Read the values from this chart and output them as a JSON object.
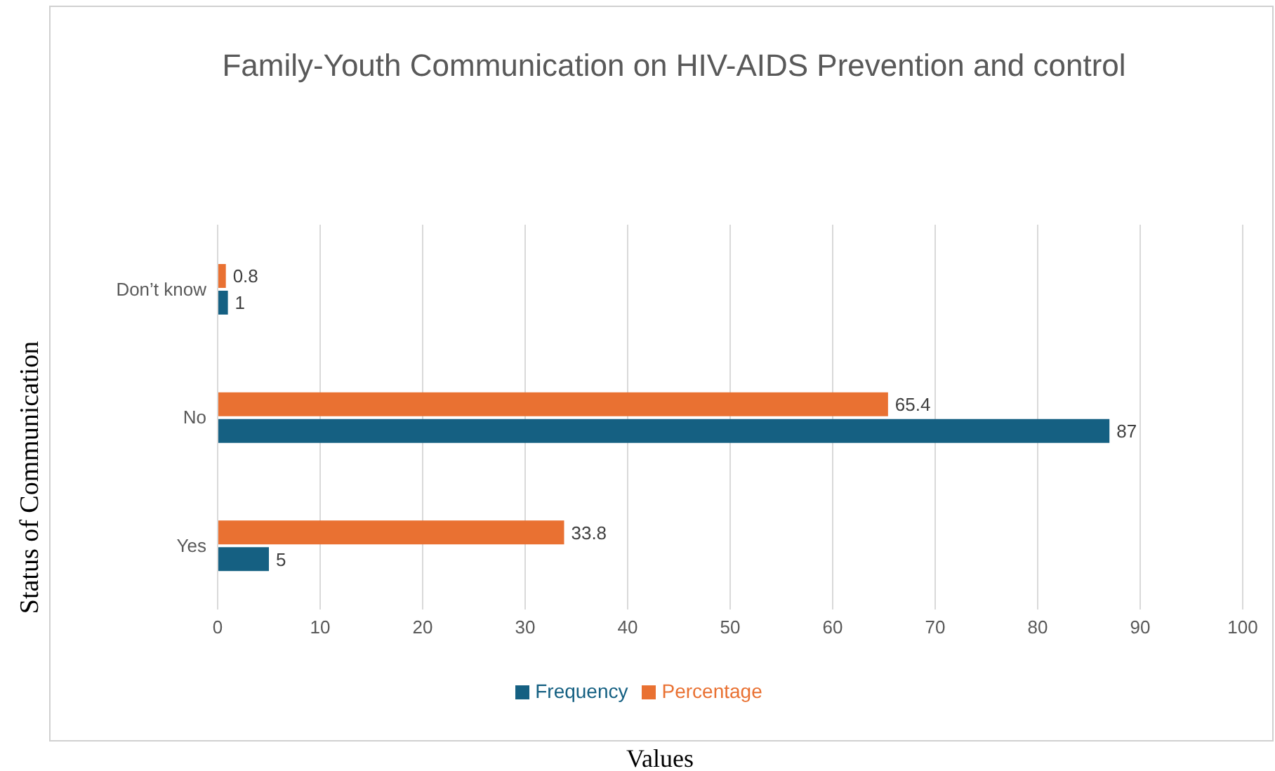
{
  "chart_data": {
    "type": "bar",
    "orientation": "horizontal",
    "title": "Family-Youth Communication on HIV-AIDS Prevention and control",
    "xlabel": "Values",
    "ylabel": "Status of Communication",
    "categories": [
      "Don’t know",
      "No",
      "Yes"
    ],
    "series": [
      {
        "name": "Percentage",
        "color": "#e97132",
        "values": [
          0.8,
          65.4,
          33.8
        ]
      },
      {
        "name": "Frequency",
        "color": "#156082",
        "values": [
          1,
          87,
          5
        ]
      }
    ],
    "xlim": [
      0,
      100
    ],
    "xticks": [
      0,
      10,
      20,
      30,
      40,
      50,
      60,
      70,
      80,
      90,
      100
    ],
    "grid": "x",
    "legend": "bottom",
    "data_labels": true
  }
}
